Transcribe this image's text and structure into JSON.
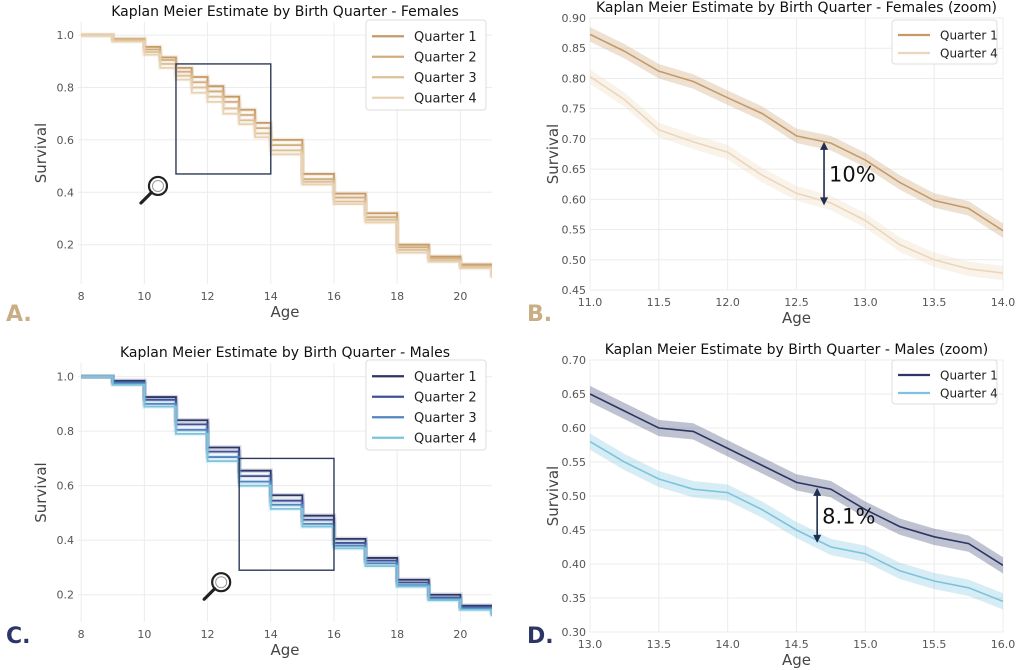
{
  "colors": {
    "panel_letter_female": "#c9ae85",
    "panel_letter_male": "#2c3566",
    "grid": "#ececec",
    "tick_text": "#555555",
    "box": "#2d3a57",
    "arrow": "#1f2d4f"
  },
  "panel_labels": [
    "A.",
    "B.",
    "C.",
    "D."
  ],
  "chart_data": [
    {
      "id": "A",
      "type": "line",
      "title": "Kaplan Meier Estimate by Birth Quarter - Females",
      "xlabel": "Age",
      "ylabel": "Survival",
      "xlim": [
        7.9,
        21.0
      ],
      "ylim": [
        0.05,
        1.05
      ],
      "xticks": [
        8,
        10,
        12,
        14,
        16,
        18,
        20
      ],
      "xtick_labels": [
        "8",
        "10",
        "12",
        "14",
        "16",
        "18",
        "20"
      ],
      "yticks": [
        0.2,
        0.4,
        0.6,
        0.8,
        1.0
      ],
      "ytick_labels": [
        "0.2",
        "0.4",
        "0.6",
        "0.8",
        "1.0"
      ],
      "grid": true,
      "legend_position": "top-right",
      "zoom_box": {
        "x": [
          11.0,
          14.0
        ],
        "y": [
          0.47,
          0.89
        ]
      },
      "magnifier_icon": "magnifier-icon",
      "series": [
        {
          "name": "Quarter 1",
          "color": "#c69a66",
          "x": [
            8,
            9,
            10,
            10.5,
            11,
            11.5,
            12,
            12.5,
            13,
            13.5,
            14,
            15,
            16,
            17,
            18,
            19,
            20,
            21
          ],
          "y": [
            1.0,
            0.985,
            0.955,
            0.915,
            0.875,
            0.84,
            0.805,
            0.765,
            0.715,
            0.665,
            0.6,
            0.47,
            0.395,
            0.32,
            0.2,
            0.155,
            0.125,
            0.08
          ]
        },
        {
          "name": "Quarter 2",
          "color": "#d2ad7e",
          "x": [
            8,
            9,
            10,
            10.5,
            11,
            11.5,
            12,
            12.5,
            13,
            13.5,
            14,
            15,
            16,
            17,
            18,
            19,
            20,
            21
          ],
          "y": [
            1.0,
            0.985,
            0.945,
            0.905,
            0.86,
            0.82,
            0.785,
            0.745,
            0.695,
            0.645,
            0.58,
            0.45,
            0.38,
            0.305,
            0.19,
            0.148,
            0.12,
            0.078
          ]
        },
        {
          "name": "Quarter 3",
          "color": "#ddc098",
          "x": [
            8,
            9,
            10,
            10.5,
            11,
            11.5,
            12,
            12.5,
            13,
            13.5,
            14,
            15,
            16,
            17,
            18,
            19,
            20,
            21
          ],
          "y": [
            1.0,
            0.98,
            0.935,
            0.89,
            0.845,
            0.8,
            0.765,
            0.72,
            0.675,
            0.625,
            0.56,
            0.44,
            0.365,
            0.295,
            0.18,
            0.14,
            0.115,
            0.075
          ]
        },
        {
          "name": "Quarter 4",
          "color": "#e8d2b4",
          "x": [
            8,
            9,
            10,
            10.5,
            11,
            11.5,
            12,
            12.5,
            13,
            13.5,
            14,
            15,
            16,
            17,
            18,
            19,
            20,
            21
          ],
          "y": [
            1.0,
            0.975,
            0.925,
            0.875,
            0.83,
            0.78,
            0.745,
            0.7,
            0.66,
            0.61,
            0.545,
            0.43,
            0.355,
            0.285,
            0.17,
            0.135,
            0.11,
            0.072
          ]
        }
      ]
    },
    {
      "id": "B",
      "type": "line",
      "title": "Kaplan Meier Estimate by Birth Quarter - Females (zoom)",
      "xlabel": "Age",
      "ylabel": "Survival",
      "xlim": [
        11.0,
        14.0
      ],
      "ylim": [
        0.45,
        0.9
      ],
      "xticks": [
        11.0,
        11.5,
        12.0,
        12.5,
        13.0,
        13.5,
        14.0
      ],
      "xtick_labels": [
        "11.0",
        "11.5",
        "12.0",
        "12.5",
        "13.0",
        "13.5",
        "14.0"
      ],
      "yticks": [
        0.45,
        0.5,
        0.55,
        0.6,
        0.65,
        0.7,
        0.75,
        0.8,
        0.85,
        0.9
      ],
      "ytick_labels": [
        "0.45",
        "0.50",
        "0.55",
        "0.60",
        "0.65",
        "0.70",
        "0.75",
        "0.80",
        "0.85",
        "0.90"
      ],
      "grid": true,
      "legend_position": "top-right",
      "band_width": 0.012,
      "annotation": {
        "text": "10%",
        "x": 12.7,
        "y_top": 0.695,
        "y_bottom": 0.59
      },
      "series": [
        {
          "name": "Quarter 1",
          "color": "#c69a66",
          "x": [
            11.0,
            11.25,
            11.5,
            11.75,
            12.0,
            12.25,
            12.5,
            12.75,
            13.0,
            13.25,
            13.5,
            13.75,
            14.0
          ],
          "y": [
            0.873,
            0.845,
            0.812,
            0.795,
            0.768,
            0.742,
            0.705,
            0.693,
            0.665,
            0.628,
            0.598,
            0.585,
            0.548
          ]
        },
        {
          "name": "Quarter 4",
          "color": "#ecd6bb",
          "x": [
            11.0,
            11.25,
            11.5,
            11.75,
            12.0,
            12.25,
            12.5,
            12.75,
            13.0,
            13.25,
            13.5,
            13.75,
            14.0
          ],
          "y": [
            0.803,
            0.765,
            0.715,
            0.695,
            0.678,
            0.64,
            0.61,
            0.594,
            0.565,
            0.525,
            0.5,
            0.485,
            0.478
          ]
        }
      ]
    },
    {
      "id": "C",
      "type": "line",
      "title": "Kaplan Meier Estimate by Birth Quarter - Males",
      "xlabel": "Age",
      "ylabel": "Survival",
      "xlim": [
        7.9,
        21.0
      ],
      "ylim": [
        0.1,
        1.05
      ],
      "xticks": [
        8,
        10,
        12,
        14,
        16,
        18,
        20
      ],
      "xtick_labels": [
        "8",
        "10",
        "12",
        "14",
        "16",
        "18",
        "20"
      ],
      "yticks": [
        0.2,
        0.4,
        0.6,
        0.8,
        1.0
      ],
      "ytick_labels": [
        "0.2",
        "0.4",
        "0.6",
        "0.8",
        "1.0"
      ],
      "grid": true,
      "legend_position": "top-right",
      "zoom_box": {
        "x": [
          13.0,
          16.0
        ],
        "y": [
          0.29,
          0.7
        ]
      },
      "magnifier_icon": "magnifier-icon",
      "series": [
        {
          "name": "Quarter 1",
          "color": "#2c3566",
          "x": [
            8,
            9,
            10,
            11,
            12,
            13,
            14,
            15,
            16,
            17,
            18,
            19,
            20,
            21
          ],
          "y": [
            1.0,
            0.985,
            0.925,
            0.84,
            0.74,
            0.655,
            0.565,
            0.49,
            0.405,
            0.335,
            0.255,
            0.2,
            0.16,
            0.13
          ]
        },
        {
          "name": "Quarter 2",
          "color": "#3e5297",
          "x": [
            8,
            9,
            10,
            11,
            12,
            13,
            14,
            15,
            16,
            17,
            18,
            19,
            20,
            21
          ],
          "y": [
            1.0,
            0.98,
            0.915,
            0.825,
            0.725,
            0.635,
            0.545,
            0.475,
            0.39,
            0.325,
            0.245,
            0.19,
            0.155,
            0.125
          ]
        },
        {
          "name": "Quarter 3",
          "color": "#4f86bf",
          "x": [
            8,
            9,
            10,
            11,
            12,
            13,
            14,
            15,
            16,
            17,
            18,
            19,
            20,
            21
          ],
          "y": [
            1.0,
            0.975,
            0.9,
            0.805,
            0.705,
            0.615,
            0.53,
            0.46,
            0.38,
            0.315,
            0.235,
            0.185,
            0.15,
            0.122
          ]
        },
        {
          "name": "Quarter 4",
          "color": "#7cc4dd",
          "x": [
            8,
            9,
            10,
            11,
            12,
            13,
            14,
            15,
            16,
            17,
            18,
            19,
            20,
            21
          ],
          "y": [
            1.0,
            0.97,
            0.89,
            0.79,
            0.69,
            0.6,
            0.515,
            0.45,
            0.37,
            0.305,
            0.23,
            0.18,
            0.145,
            0.12
          ]
        }
      ]
    },
    {
      "id": "D",
      "type": "line",
      "title": "Kaplan Meier Estimate by Birth Quarter - Males (zoom)",
      "xlabel": "Age",
      "ylabel": "Survival",
      "xlim": [
        13.0,
        16.0
      ],
      "ylim": [
        0.3,
        0.7
      ],
      "xticks": [
        13.0,
        13.5,
        14.0,
        14.5,
        15.0,
        15.5,
        16.0
      ],
      "xtick_labels": [
        "13.0",
        "13.5",
        "14.0",
        "14.5",
        "15.0",
        "15.5",
        "16.0"
      ],
      "yticks": [
        0.3,
        0.35,
        0.4,
        0.45,
        0.5,
        0.55,
        0.6,
        0.65,
        0.7
      ],
      "ytick_labels": [
        "0.30",
        "0.35",
        "0.40",
        "0.45",
        "0.50",
        "0.55",
        "0.60",
        "0.65",
        "0.70"
      ],
      "grid": true,
      "legend_position": "top-right",
      "band_width": 0.012,
      "annotation": {
        "text": "8.1%",
        "x": 14.65,
        "y_top": 0.512,
        "y_bottom": 0.431
      },
      "series": [
        {
          "name": "Quarter 1",
          "color": "#2c3566",
          "x": [
            13.0,
            13.25,
            13.5,
            13.75,
            14.0,
            14.25,
            14.5,
            14.75,
            15.0,
            15.25,
            15.5,
            15.75,
            16.0
          ],
          "y": [
            0.65,
            0.625,
            0.6,
            0.595,
            0.57,
            0.545,
            0.52,
            0.51,
            0.48,
            0.455,
            0.44,
            0.43,
            0.398
          ]
        },
        {
          "name": "Quarter 4",
          "color": "#7cc4dd",
          "x": [
            13.0,
            13.25,
            13.5,
            13.75,
            14.0,
            14.25,
            14.5,
            14.75,
            15.0,
            15.25,
            15.5,
            15.75,
            16.0
          ],
          "y": [
            0.58,
            0.55,
            0.525,
            0.51,
            0.505,
            0.48,
            0.45,
            0.425,
            0.415,
            0.39,
            0.375,
            0.365,
            0.345
          ]
        }
      ]
    }
  ]
}
